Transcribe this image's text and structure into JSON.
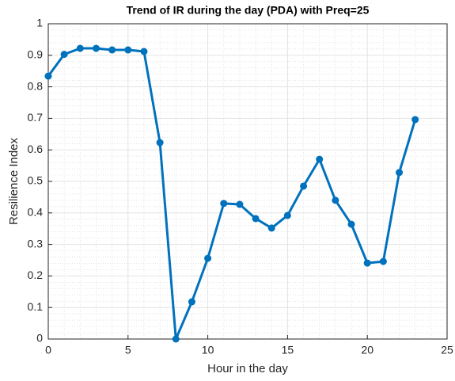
{
  "chart_data": {
    "type": "line",
    "title": "Trend of IR during the day (PDA) with Preq=25",
    "x_label": "Hour in the day",
    "y_label": "Resilience Index",
    "x": [
      0,
      1,
      2,
      3,
      4,
      5,
      6,
      7,
      8,
      9,
      10,
      11,
      12,
      13,
      14,
      15,
      16,
      17,
      18,
      19,
      20,
      21,
      22,
      23
    ],
    "series": [
      {
        "color": "#0072bd",
        "values": [
          0.834,
          0.903,
          0.922,
          0.922,
          0.917,
          0.917,
          0.912,
          0.623,
          0.0,
          0.118,
          0.256,
          0.43,
          0.427,
          0.382,
          0.352,
          0.392,
          0.485,
          0.57,
          0.44,
          0.364,
          0.241,
          0.246,
          0.528,
          0.696
        ]
      }
    ],
    "xlim": [
      0,
      25
    ],
    "xticks": [
      0,
      5,
      10,
      15,
      20,
      25
    ],
    "ylim": [
      0,
      1
    ],
    "yticks": [
      0,
      0.1,
      0.2,
      0.3,
      0.4,
      0.5,
      0.6,
      0.7,
      0.8,
      0.9,
      1
    ],
    "grid": true,
    "minor_grid": true
  }
}
